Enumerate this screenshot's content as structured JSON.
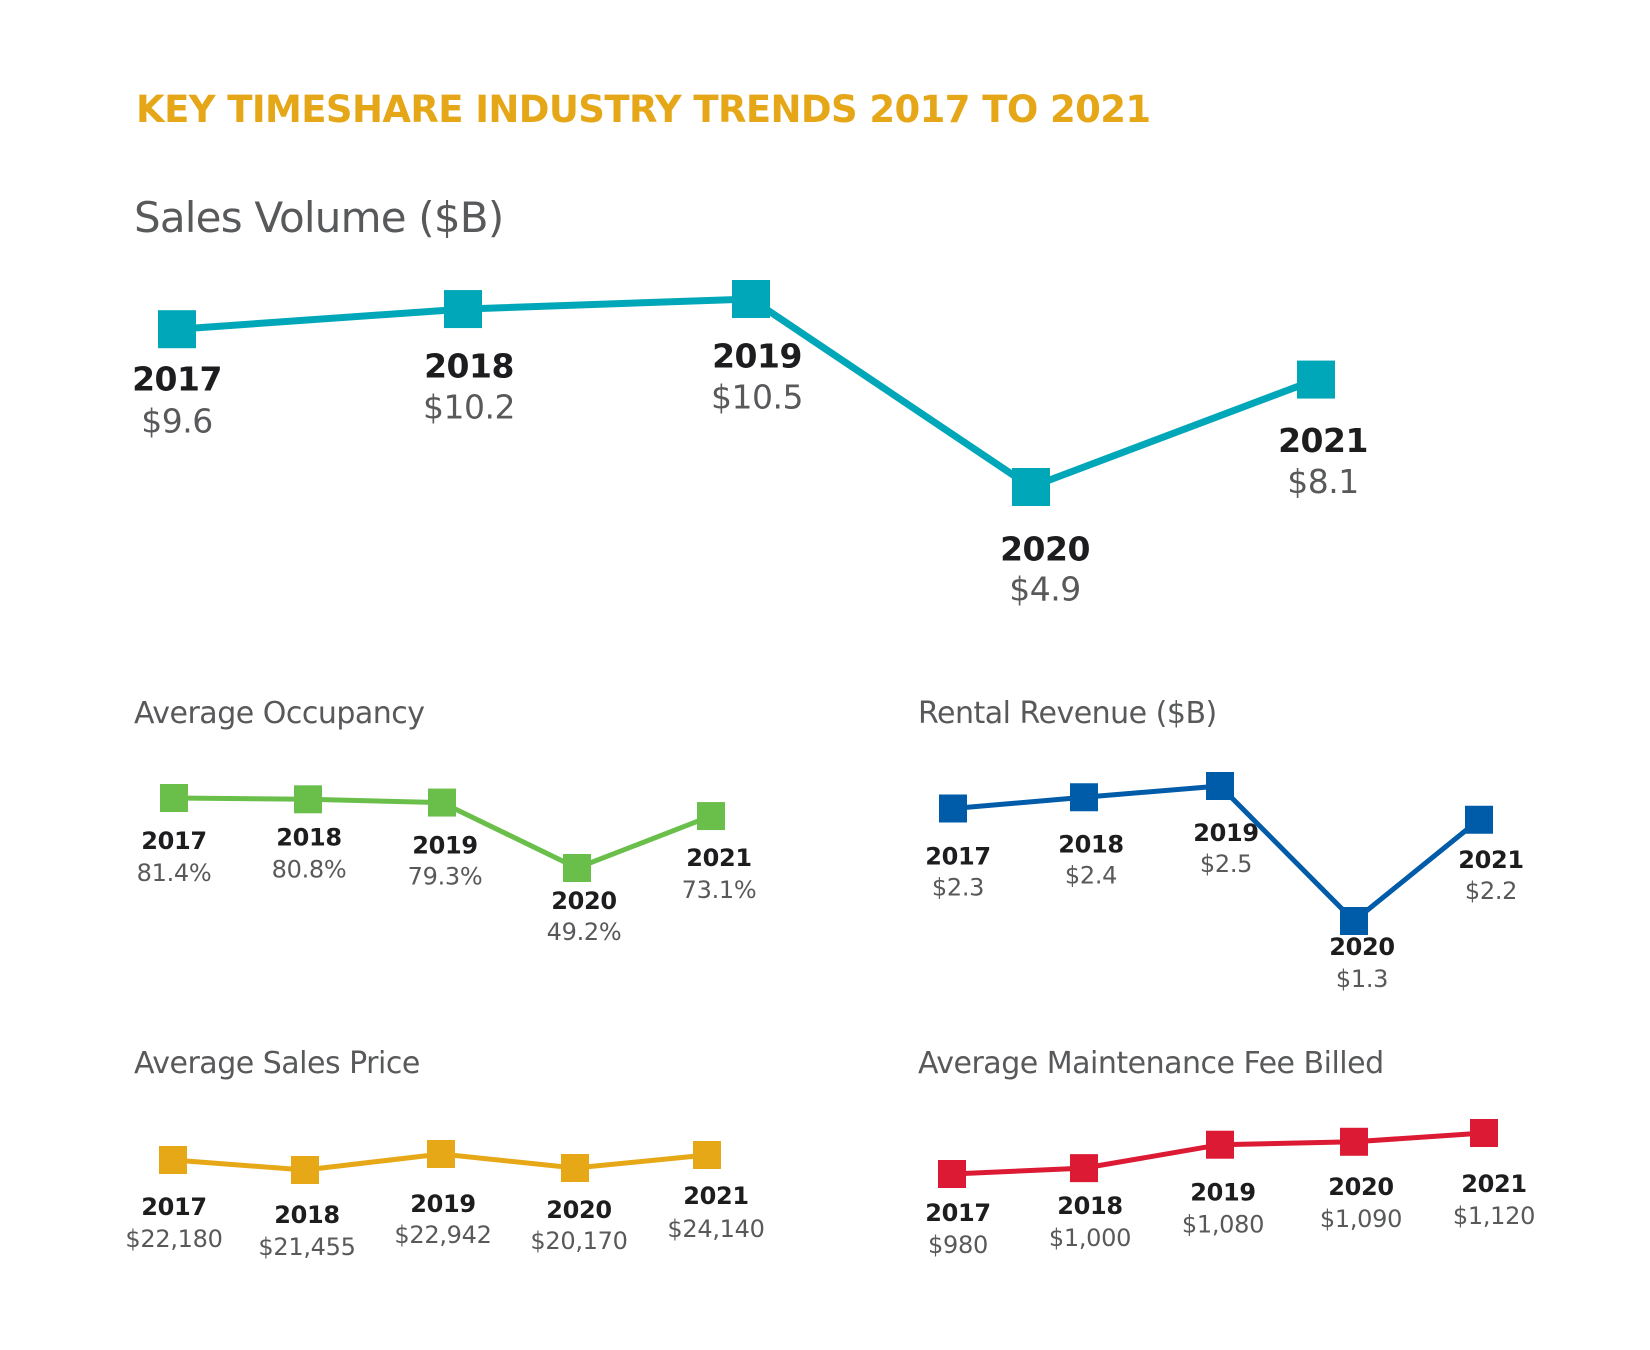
{
  "page": {
    "title": "KEY TIMESHARE INDUSTRY TRENDS 2017 TO 2021"
  },
  "chart_data": [
    {
      "id": "sales_volume",
      "type": "line",
      "title": "Sales Volume ($B)",
      "color": "#00a7b8",
      "categories": [
        "2017",
        "2018",
        "2019",
        "2020",
        "2021"
      ],
      "values": [
        9.6,
        10.2,
        10.5,
        4.9,
        8.1
      ],
      "value_labels": [
        "$9.6",
        "$10.2",
        "$10.5",
        "$4.9",
        "$8.1"
      ],
      "xlabel": "",
      "ylabel": "",
      "grid": false,
      "legend": "none",
      "marker": "square"
    },
    {
      "id": "average_occupancy",
      "type": "line",
      "title": "Average Occupancy",
      "color": "#6abf4b",
      "categories": [
        "2017",
        "2018",
        "2019",
        "2020",
        "2021"
      ],
      "values": [
        81.4,
        80.8,
        79.3,
        49.2,
        73.1
      ],
      "value_labels": [
        "81.4%",
        "80.8%",
        "79.3%",
        "49.2%",
        "73.1%"
      ],
      "xlabel": "",
      "ylabel": "",
      "grid": false,
      "legend": "none",
      "marker": "square"
    },
    {
      "id": "rental_revenue",
      "type": "line",
      "title": "Rental Revenue ($B)",
      "color": "#005ba8",
      "categories": [
        "2017",
        "2018",
        "2019",
        "2020",
        "2021"
      ],
      "values": [
        2.3,
        2.4,
        2.5,
        1.3,
        2.2
      ],
      "value_labels": [
        "$2.3",
        "$2.4",
        "$2.5",
        "$1.3",
        "$2.2"
      ],
      "xlabel": "",
      "ylabel": "",
      "grid": false,
      "legend": "none",
      "marker": "square"
    },
    {
      "id": "average_sales_price",
      "type": "line",
      "title": "Average Sales Price",
      "color": "#e6a817",
      "categories": [
        "2017",
        "2018",
        "2019",
        "2020",
        "2021"
      ],
      "values": [
        22180,
        21455,
        22942,
        20170,
        24140
      ],
      "value_labels": [
        "$22,180",
        "$21,455",
        "$22,942",
        "$20,170",
        "$24,140"
      ],
      "xlabel": "",
      "ylabel": "",
      "grid": false,
      "legend": "none",
      "marker": "square"
    },
    {
      "id": "average_maintenance_fee",
      "type": "line",
      "title": "Average Maintenance Fee Billed",
      "color": "#dc1a33",
      "categories": [
        "2017",
        "2018",
        "2019",
        "2020",
        "2021"
      ],
      "values": [
        980,
        1000,
        1080,
        1090,
        1120
      ],
      "value_labels": [
        "$980",
        "$1,000",
        "$1,080",
        "$1,090",
        "$1,120"
      ],
      "xlabel": "",
      "ylabel": "",
      "grid": false,
      "legend": "none",
      "marker": "square"
    }
  ]
}
